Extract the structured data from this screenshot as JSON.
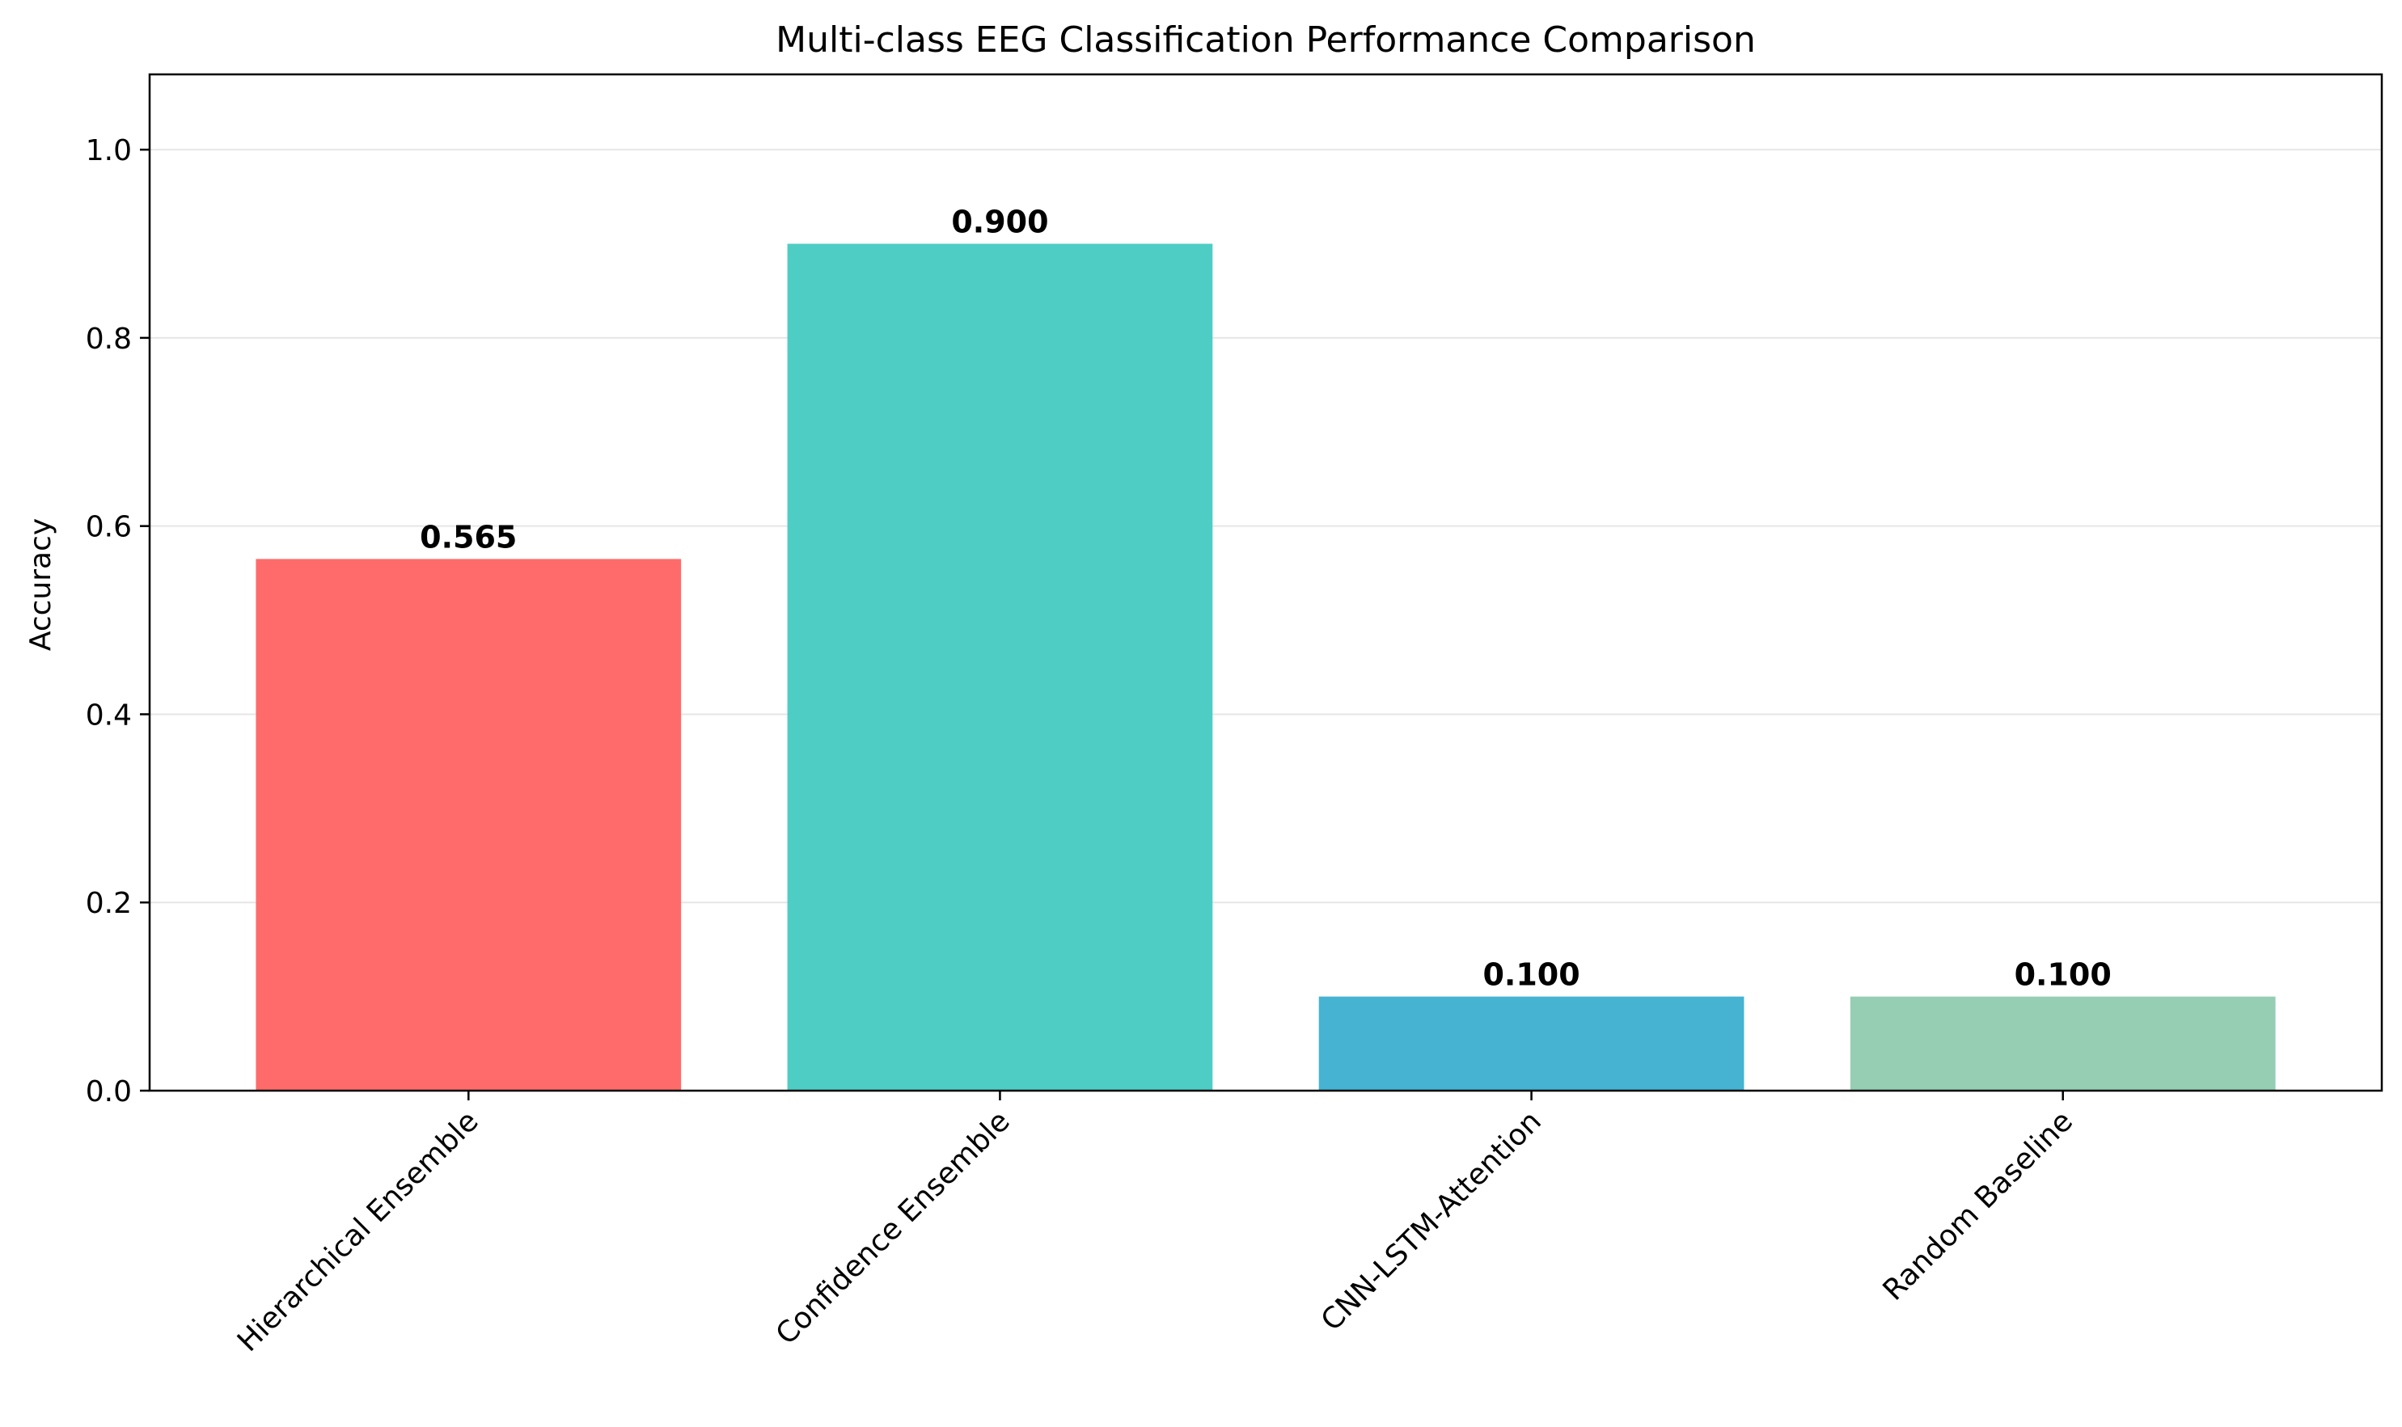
{
  "chart_data": {
    "type": "bar",
    "title": "Multi-class EEG Classification Performance Comparison",
    "xlabel": "",
    "ylabel": "Accuracy",
    "categories": [
      "Hierarchical Ensemble",
      "Confidence Ensemble",
      "CNN-LSTM-Attention",
      "Random Baseline"
    ],
    "values": [
      0.565,
      0.9,
      0.1,
      0.1
    ],
    "value_labels": [
      "0.565",
      "0.900",
      "0.100",
      "0.100"
    ],
    "colors": [
      "#ff6b6b",
      "#4ecdc4",
      "#45b3d1",
      "#96ceb4"
    ],
    "ylim": [
      0,
      1.08
    ],
    "yticks": [
      0.0,
      0.2,
      0.4,
      0.6,
      0.8,
      1.0
    ],
    "ytick_labels": [
      "0.0",
      "0.2",
      "0.4",
      "0.6",
      "0.8",
      "1.0"
    ],
    "grid": "y",
    "legend": "none"
  }
}
